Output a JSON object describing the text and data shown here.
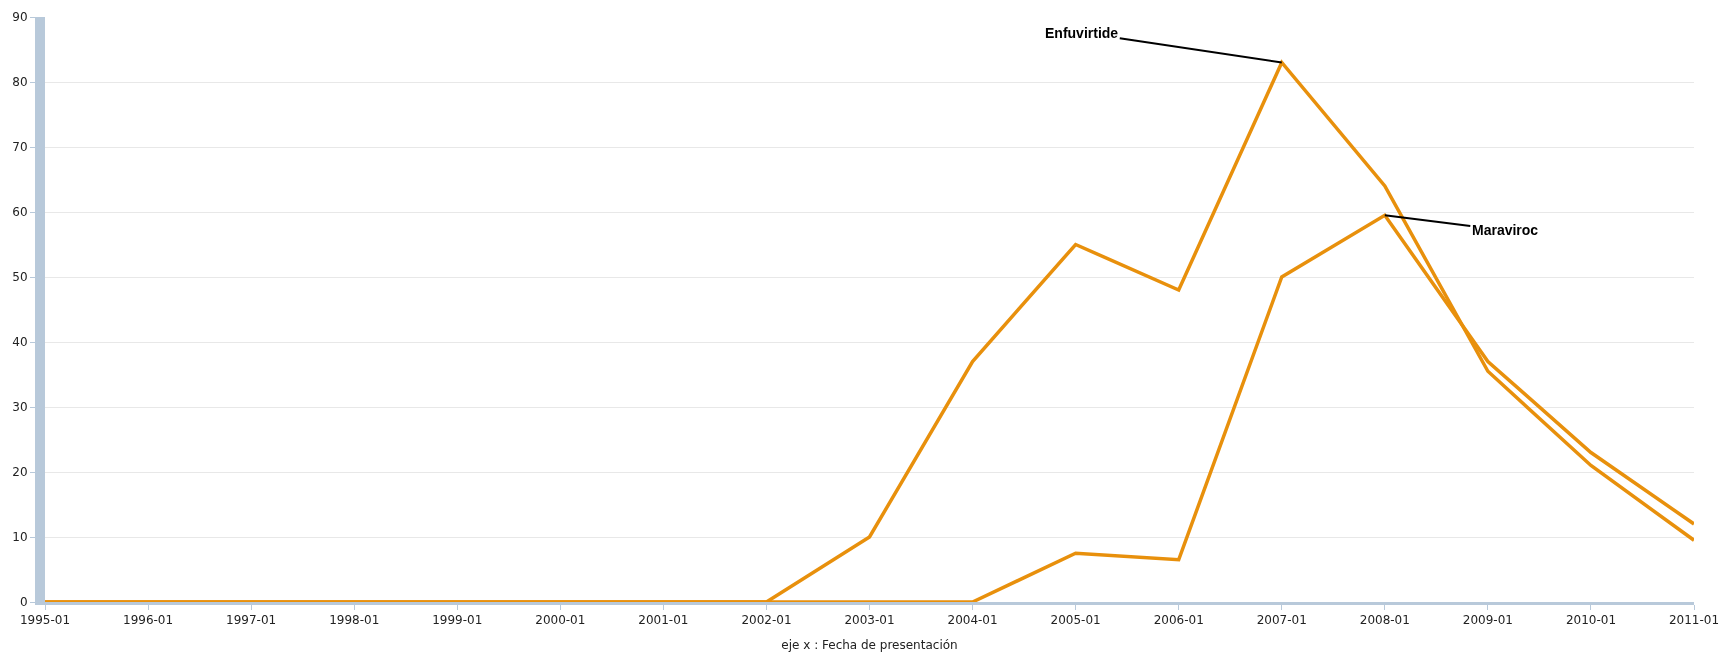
{
  "chart_data": {
    "type": "line",
    "xlabel": "eje x : Fecha de presentación",
    "categories": [
      "1995-01",
      "1996-01",
      "1997-01",
      "1998-01",
      "1999-01",
      "2000-01",
      "2001-01",
      "2002-01",
      "2003-01",
      "2004-01",
      "2005-01",
      "2006-01",
      "2007-01",
      "2008-01",
      "2009-01",
      "2010-01",
      "2011-01"
    ],
    "series": [
      {
        "color": "#e8900c",
        "values": [
          0,
          0,
          0,
          0,
          0,
          0,
          0,
          0,
          10,
          37,
          55,
          48,
          83,
          64,
          35.5,
          21,
          9.5
        ]
      },
      {
        "color": "#e8900c",
        "values": [
          0,
          0,
          0,
          0,
          0,
          0,
          0,
          0,
          0,
          0,
          7.5,
          6.5,
          50,
          59.5,
          37,
          23,
          12
        ]
      }
    ],
    "ylim": [
      0,
      90
    ],
    "yticks": [
      0,
      10,
      20,
      30,
      40,
      50,
      60,
      70,
      80,
      90
    ],
    "grid": "y",
    "marker": "none",
    "line_style": "solid",
    "annotations": [
      {
        "text": "Enfuvirtide",
        "x": "2007-01",
        "y": 83
      },
      {
        "text": "Maraviroc",
        "x": "2008-01",
        "y": 59.5
      }
    ]
  }
}
